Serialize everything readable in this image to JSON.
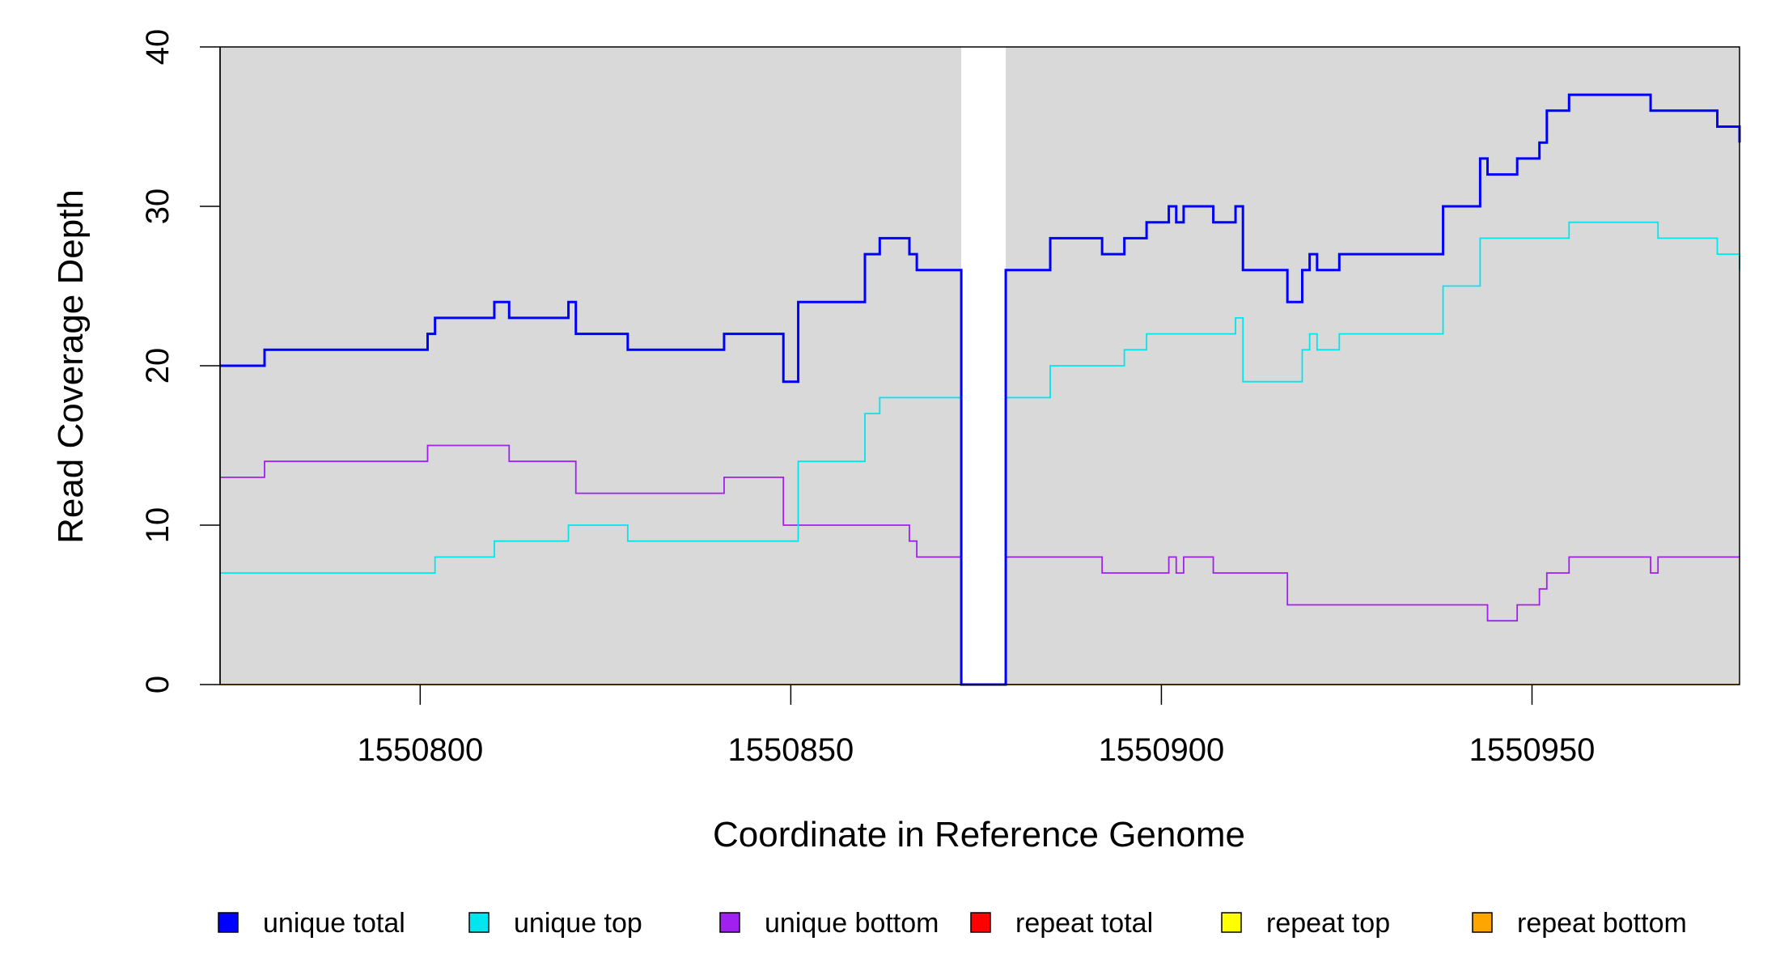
{
  "chart_data": {
    "type": "line",
    "xlabel": "Coordinate in Reference Genome",
    "ylabel": "Read Coverage Depth",
    "xlim": [
      1550773,
      1550978
    ],
    "ylim": [
      0,
      40
    ],
    "x_ticks": [
      1550800,
      1550850,
      1550900,
      1550950
    ],
    "y_ticks": [
      0,
      10,
      20,
      30,
      40
    ],
    "x_tick_labels": [
      "1550800",
      "1550850",
      "1550900",
      "1550950"
    ],
    "y_tick_labels": [
      "0",
      "10",
      "20",
      "30",
      "40"
    ],
    "grid": false,
    "plot_background": "#d9d9d9",
    "gap_region": [
      1550873,
      1550879
    ],
    "gap_color": "#ffffff",
    "step_style": "post",
    "legend_position": "bottom",
    "series": [
      {
        "name": "unique total",
        "color": "#0000ff",
        "x": [
          1550773,
          1550779,
          1550801,
          1550802,
          1550810,
          1550812,
          1550820,
          1550821,
          1550828,
          1550841,
          1550849,
          1550851,
          1550860,
          1550862,
          1550866,
          1550867,
          1550873,
          1550879,
          1550885,
          1550892,
          1550895,
          1550898,
          1550901,
          1550902,
          1550903,
          1550907,
          1550910,
          1550911,
          1550917,
          1550919,
          1550920,
          1550921,
          1550924,
          1550938,
          1550943,
          1550944,
          1550948,
          1550951,
          1550952,
          1550955,
          1550966,
          1550975,
          1550978
        ],
        "y": [
          20,
          21,
          22,
          23,
          24,
          23,
          24,
          22,
          21,
          22,
          19,
          24,
          27,
          28,
          27,
          26,
          0,
          26,
          28,
          27,
          28,
          29,
          30,
          29,
          30,
          29,
          30,
          26,
          24,
          26,
          27,
          26,
          27,
          30,
          33,
          32,
          33,
          34,
          36,
          37,
          36,
          35,
          34
        ]
      },
      {
        "name": "unique top",
        "color": "#00e5ee",
        "x": [
          1550773,
          1550802,
          1550810,
          1550820,
          1550828,
          1550851,
          1550860,
          1550862,
          1550873,
          1550879,
          1550885,
          1550895,
          1550898,
          1550910,
          1550911,
          1550919,
          1550920,
          1550921,
          1550924,
          1550938,
          1550943,
          1550955,
          1550967,
          1550975,
          1550978
        ],
        "y": [
          7,
          8,
          9,
          10,
          9,
          14,
          17,
          18,
          0,
          18,
          20,
          21,
          22,
          23,
          19,
          21,
          22,
          21,
          22,
          25,
          28,
          29,
          28,
          27,
          26
        ]
      },
      {
        "name": "unique bottom",
        "color": "#a020f0",
        "x": [
          1550773,
          1550779,
          1550801,
          1550812,
          1550821,
          1550841,
          1550849,
          1550866,
          1550867,
          1550873,
          1550879,
          1550892,
          1550901,
          1550902,
          1550903,
          1550907,
          1550917,
          1550944,
          1550948,
          1550951,
          1550952,
          1550955,
          1550966,
          1550967,
          1550978
        ],
        "y": [
          13,
          14,
          15,
          14,
          12,
          13,
          10,
          9,
          8,
          0,
          8,
          7,
          8,
          7,
          8,
          7,
          5,
          4,
          5,
          6,
          7,
          8,
          7,
          8,
          8
        ]
      },
      {
        "name": "repeat total",
        "color": "#ff0000",
        "x": [
          1550773,
          1550978
        ],
        "y": [
          0,
          0
        ]
      },
      {
        "name": "repeat top",
        "color": "#ffff00",
        "x": [
          1550773,
          1550978
        ],
        "y": [
          0,
          0
        ]
      },
      {
        "name": "repeat bottom",
        "color": "#ffa500",
        "x": [
          1550773,
          1550978
        ],
        "y": [
          0,
          0
        ]
      }
    ]
  }
}
